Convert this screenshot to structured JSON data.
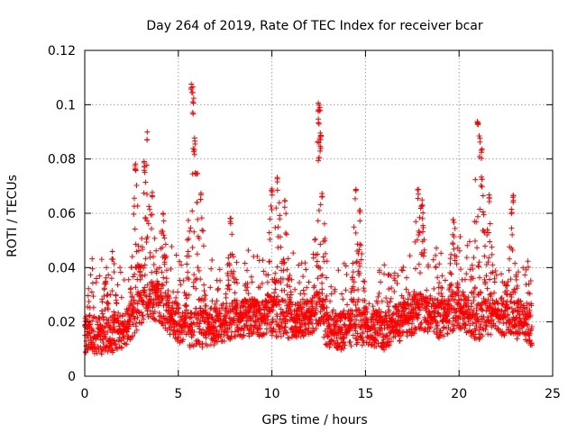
{
  "chart_data": {
    "type": "scatter",
    "title": "Day 264 of 2019, Rate Of TEC Index for receiver bcar",
    "xlabel": "GPS time / hours",
    "ylabel": "ROTI / TECUs",
    "xlim": [
      0,
      25
    ],
    "ylim": [
      0,
      0.12
    ],
    "xticks": [
      0,
      5,
      10,
      15,
      20,
      25
    ],
    "yticks": [
      0,
      0.02,
      0.04,
      0.06,
      0.08,
      0.1,
      0.12
    ],
    "grid": true,
    "marker": "+",
    "color": "#ff0000",
    "x_extent": [
      0,
      23.9
    ],
    "baseline": [
      [
        0,
        0.015
      ],
      [
        1,
        0.014
      ],
      [
        2,
        0.016
      ],
      [
        2.7,
        0.022
      ],
      [
        3.3,
        0.028
      ],
      [
        4,
        0.026
      ],
      [
        4.6,
        0.021
      ],
      [
        5.2,
        0.018
      ],
      [
        6,
        0.016
      ],
      [
        7,
        0.018
      ],
      [
        8,
        0.02
      ],
      [
        9,
        0.021
      ],
      [
        10,
        0.021
      ],
      [
        11,
        0.02
      ],
      [
        12,
        0.021
      ],
      [
        12.5,
        0.024
      ],
      [
        13,
        0.016
      ],
      [
        14,
        0.016
      ],
      [
        15,
        0.018
      ],
      [
        16,
        0.016
      ],
      [
        17,
        0.02
      ],
      [
        18,
        0.023
      ],
      [
        19,
        0.02
      ],
      [
        20,
        0.024
      ],
      [
        21,
        0.019
      ],
      [
        22,
        0.022
      ],
      [
        23,
        0.02
      ],
      [
        23.9,
        0.017
      ]
    ],
    "spikes": [
      {
        "x": 1.1,
        "y": 0.037
      },
      {
        "x": 1.5,
        "y": 0.046
      },
      {
        "x": 2.7,
        "y": 0.079
      },
      {
        "x": 3.2,
        "y": 0.08
      },
      {
        "x": 3.35,
        "y": 0.09
      },
      {
        "x": 3.6,
        "y": 0.068
      },
      {
        "x": 4.2,
        "y": 0.06
      },
      {
        "x": 5.7,
        "y": 0.108
      },
      {
        "x": 5.75,
        "y": 0.107
      },
      {
        "x": 5.8,
        "y": 0.103
      },
      {
        "x": 5.85,
        "y": 0.084
      },
      {
        "x": 6.0,
        "y": 0.076
      },
      {
        "x": 6.2,
        "y": 0.068
      },
      {
        "x": 7.8,
        "y": 0.059
      },
      {
        "x": 10.0,
        "y": 0.069
      },
      {
        "x": 10.3,
        "y": 0.074
      },
      {
        "x": 10.7,
        "y": 0.066
      },
      {
        "x": 12.5,
        "y": 0.101
      },
      {
        "x": 12.55,
        "y": 0.099
      },
      {
        "x": 12.5,
        "y": 0.095
      },
      {
        "x": 12.6,
        "y": 0.09
      },
      {
        "x": 12.6,
        "y": 0.085
      },
      {
        "x": 12.5,
        "y": 0.081
      },
      {
        "x": 12.7,
        "y": 0.069
      },
      {
        "x": 14.5,
        "y": 0.07
      },
      {
        "x": 14.7,
        "y": 0.062
      },
      {
        "x": 17.8,
        "y": 0.069
      },
      {
        "x": 18.0,
        "y": 0.065
      },
      {
        "x": 19.7,
        "y": 0.059
      },
      {
        "x": 21.0,
        "y": 0.094
      },
      {
        "x": 21.1,
        "y": 0.089
      },
      {
        "x": 21.2,
        "y": 0.085
      },
      {
        "x": 21.2,
        "y": 0.074
      },
      {
        "x": 21.6,
        "y": 0.067
      },
      {
        "x": 22.9,
        "y": 0.067
      },
      {
        "x": 22.8,
        "y": 0.062
      }
    ]
  }
}
